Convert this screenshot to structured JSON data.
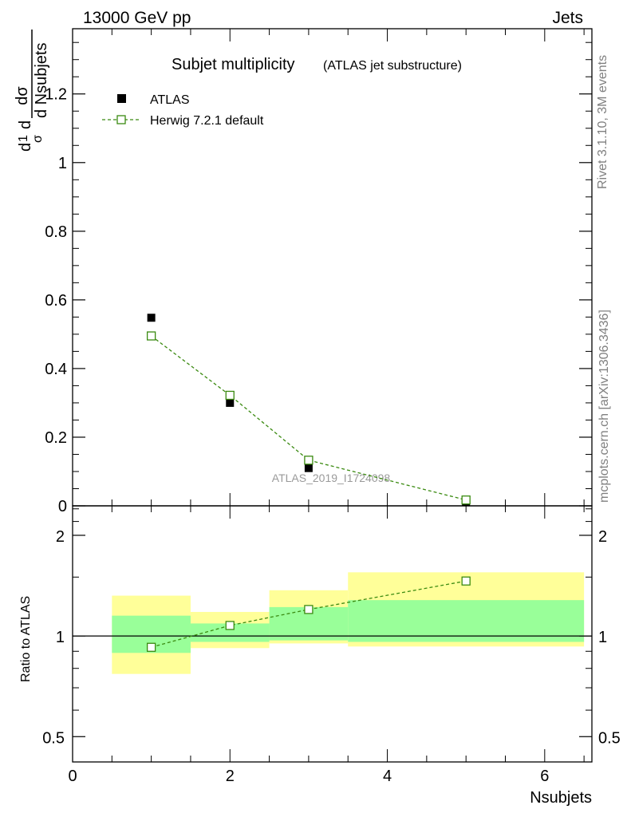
{
  "header": {
    "left": "13000 GeV pp",
    "right": "Jets"
  },
  "side_labels": {
    "rivet": "Rivet 3.1.10,  3M events",
    "mcplots": "mcplots.cern.ch [arXiv:1306.3436]"
  },
  "watermark": "ATLAS_2019_I1724098",
  "colors": {
    "atlas": "#000000",
    "herwig": "#3a8a10",
    "band_outer": "#ffff99",
    "band_inner": "#99ff99"
  },
  "chart_data": [
    {
      "type": "scatter",
      "title": "Subjet multiplicity",
      "subtitle": "(ATLAS jet substructure)",
      "ylabel_parts": {
        "d1": "d",
        "one": "1",
        "sigma": "σ",
        "d2": "d",
        "dsigma": "dσ",
        "dN": "d Nsubjets"
      },
      "xlim": [
        0,
        6.6
      ],
      "ylim": [
        0,
        1.39
      ],
      "y_ticks": [
        0,
        0.2,
        0.4,
        0.6,
        0.8,
        1,
        1.2
      ],
      "y_tick_labels": [
        "0",
        "0.2",
        "0.4",
        "0.6",
        "0.8",
        "1",
        "1.2"
      ],
      "legend": [
        "ATLAS",
        "Herwig 7.2.1 default"
      ],
      "series": [
        {
          "name": "ATLAS",
          "x": [
            1,
            2,
            3,
            5
          ],
          "y": [
            0.548,
            0.3,
            0.11,
            0.012
          ]
        },
        {
          "name": "Herwig 7.2.1 default",
          "x": [
            1,
            2,
            3,
            5
          ],
          "y": [
            0.495,
            0.322,
            0.133,
            0.017
          ]
        }
      ]
    },
    {
      "type": "line",
      "ylabel": "Ratio to ATLAS",
      "xlabel": "Nsubjets",
      "xlim": [
        0,
        6.6
      ],
      "ylim": [
        0.42,
        2.45
      ],
      "y_tick_labels": [
        "0.5",
        "1",
        "2"
      ],
      "x_tick_labels": [
        "0",
        "2",
        "4",
        "6"
      ],
      "bins": [
        {
          "lo": 0.5,
          "hi": 1.5,
          "outer": [
            0.77,
            1.32
          ],
          "inner": [
            0.89,
            1.15
          ]
        },
        {
          "lo": 1.5,
          "hi": 2.5,
          "outer": [
            0.92,
            1.18
          ],
          "inner": [
            0.96,
            1.09
          ]
        },
        {
          "lo": 2.5,
          "hi": 3.5,
          "outer": [
            0.95,
            1.37
          ],
          "inner": [
            0.97,
            1.22
          ]
        },
        {
          "lo": 3.5,
          "hi": 6.5,
          "outer": [
            0.93,
            1.55
          ],
          "inner": [
            0.96,
            1.28
          ]
        }
      ],
      "series": [
        {
          "name": "Herwig 7.2.1 default",
          "x": [
            1,
            2,
            3,
            5
          ],
          "y": [
            0.925,
            1.075,
            1.2,
            1.46
          ]
        }
      ],
      "reference": 1
    }
  ]
}
